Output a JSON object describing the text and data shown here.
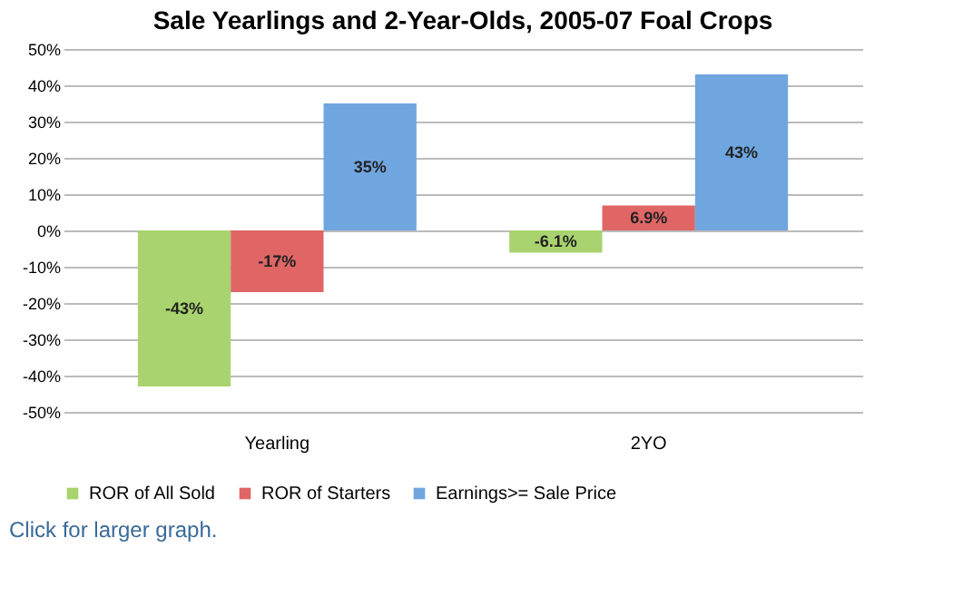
{
  "chart_data": {
    "type": "bar",
    "title": "Sale Yearlings and 2-Year-Olds, 2005-07 Foal Crops",
    "categories": [
      "Yearling",
      "2YO"
    ],
    "series": [
      {
        "name": "ROR of All Sold",
        "color": "#a9d36e",
        "values": [
          -43,
          -6.1
        ],
        "value_labels": [
          "-43%",
          "-6.1%"
        ]
      },
      {
        "name": "ROR of Starters",
        "color": "#e06666",
        "values": [
          -17,
          6.9
        ],
        "value_labels": [
          "-17%",
          "6.9%"
        ]
      },
      {
        "name": "Earnings>= Sale Price",
        "color": "#6fa6e0",
        "values": [
          35,
          43
        ],
        "value_labels": [
          "35%",
          "43%"
        ]
      }
    ],
    "ylim": [
      -50,
      50
    ],
    "yticks": [
      {
        "value": -50,
        "label": "-50%"
      },
      {
        "value": -40,
        "label": "-40%"
      },
      {
        "value": -30,
        "label": "-30%"
      },
      {
        "value": -20,
        "label": "-20%"
      },
      {
        "value": -10,
        "label": "-10%"
      },
      {
        "value": 0,
        "label": "0%"
      },
      {
        "value": 10,
        "label": "10%"
      },
      {
        "value": 20,
        "label": "20%"
      },
      {
        "value": 30,
        "label": "30%"
      },
      {
        "value": 40,
        "label": "40%"
      },
      {
        "value": 50,
        "label": "50%"
      }
    ],
    "grid": "y",
    "legend": "bottom",
    "annotations": [
      "Click for larger graph."
    ]
  }
}
